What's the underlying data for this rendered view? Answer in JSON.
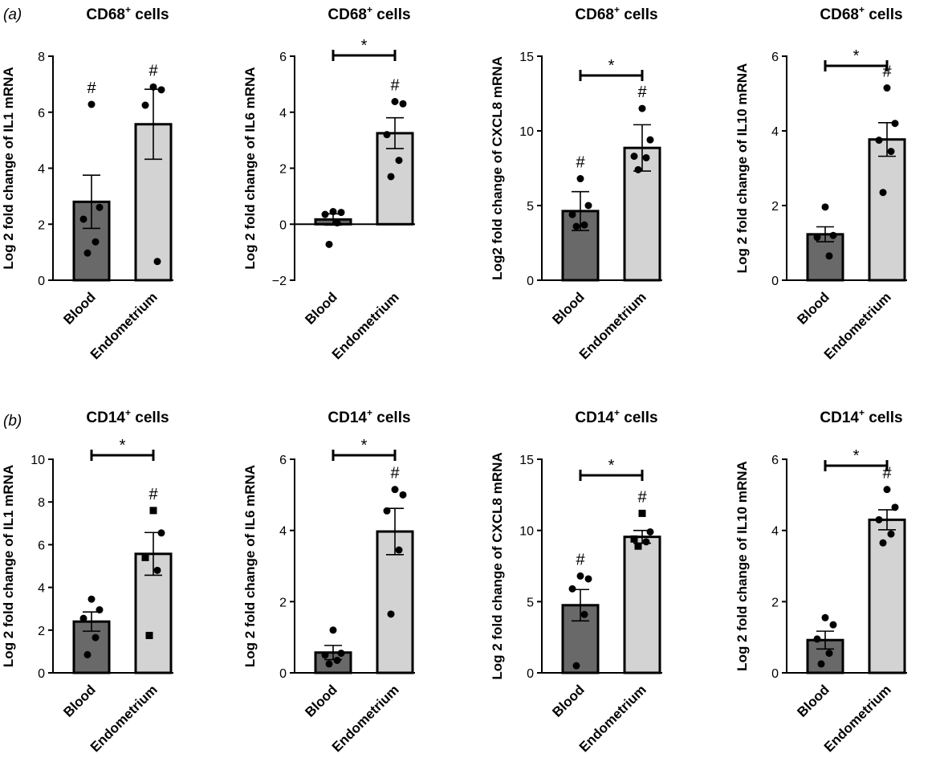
{
  "panel_labels": {
    "a": "(a)",
    "b": "(b)"
  },
  "chart_data": [
    {
      "type": "bar",
      "row": "a",
      "title_main": "CD68",
      "title_sup": "+",
      "title_rest": " cells",
      "ylabel": "Log 2 fold change of IL1 mRNA",
      "ylim": [
        0,
        8
      ],
      "yticks": [
        0,
        2,
        4,
        6,
        8
      ],
      "categories": [
        "Blood",
        "Endometrium"
      ],
      "colors": [
        "#696969",
        "#d3d3d3"
      ],
      "values": [
        2.8,
        5.57
      ],
      "errors": [
        0.95,
        1.25
      ],
      "points": [
        [
          6.28,
          2.6,
          2.18,
          1.37,
          0.97
        ],
        [
          6.9,
          6.8,
          6.25,
          0.67
        ]
      ],
      "point_markers": [
        "circle",
        "circle"
      ],
      "marks": [
        "#",
        "#"
      ],
      "significance": ""
    },
    {
      "type": "bar",
      "row": "a",
      "title_main": "CD68",
      "title_sup": "+",
      "title_rest": " cells",
      "ylabel": "Log 2 fold change of IL6 mRNA",
      "ylim": [
        -2,
        6
      ],
      "yticks": [
        -2,
        0,
        2,
        4,
        6
      ],
      "categories": [
        "Blood",
        "Endometrium"
      ],
      "colors": [
        "#696969",
        "#d3d3d3"
      ],
      "values": [
        0.17,
        3.25
      ],
      "errors": [
        0.2,
        0.55
      ],
      "points": [
        [
          0.45,
          0.42,
          0.35,
          0.05,
          -0.72
        ],
        [
          4.38,
          4.3,
          3.2,
          2.28,
          1.7
        ]
      ],
      "point_markers": [
        "circle",
        "circle"
      ],
      "marks": [
        "",
        "#"
      ],
      "significance": "*"
    },
    {
      "type": "bar",
      "row": "a",
      "title_main": "CD68",
      "title_sup": "+",
      "title_rest": " cells",
      "ylabel": "Log2 fold change of CXCL8 mRNA",
      "ylim": [
        0,
        15
      ],
      "yticks": [
        0,
        5,
        10,
        15
      ],
      "categories": [
        "Blood",
        "Endometrium"
      ],
      "colors": [
        "#696969",
        "#d3d3d3"
      ],
      "values": [
        4.63,
        8.86
      ],
      "errors": [
        1.3,
        1.55
      ],
      "points": [
        [
          6.8,
          5.0,
          4.4,
          3.7,
          3.6
        ],
        [
          11.5,
          9.4,
          8.3,
          8.2,
          7.4
        ]
      ],
      "point_markers": [
        "circle",
        "circle"
      ],
      "marks": [
        "#",
        "#"
      ],
      "significance": "*"
    },
    {
      "type": "bar",
      "row": "a",
      "title_main": "CD68",
      "title_sup": "+",
      "title_rest": " cells",
      "ylabel": "Log 2 fold change of IL10 mRNA",
      "ylim": [
        0,
        6
      ],
      "yticks": [
        0,
        2,
        4,
        6
      ],
      "categories": [
        "Blood",
        "Endometrium"
      ],
      "colors": [
        "#696969",
        "#d3d3d3"
      ],
      "values": [
        1.23,
        3.77
      ],
      "errors": [
        0.2,
        0.45
      ],
      "points": [
        [
          1.96,
          1.2,
          1.15,
          0.65
        ],
        [
          5.15,
          4.2,
          3.75,
          3.45,
          2.35
        ]
      ],
      "point_markers": [
        "circle",
        "circle"
      ],
      "marks": [
        "",
        "#"
      ],
      "significance": "*"
    },
    {
      "type": "bar",
      "row": "b",
      "title_main": "CD14",
      "title_sup": "+",
      "title_rest": " cells",
      "ylabel": "Log 2 fold change of IL1 mRNA",
      "ylim": [
        0,
        10
      ],
      "yticks": [
        0,
        2,
        4,
        6,
        8,
        10
      ],
      "categories": [
        "Blood",
        "Endometrium"
      ],
      "colors": [
        "#696969",
        "#d3d3d3"
      ],
      "values": [
        2.4,
        5.57
      ],
      "errors": [
        0.45,
        1.0
      ],
      "points": [
        [
          3.45,
          2.95,
          2.55,
          1.65,
          0.85
        ],
        [
          7.6,
          6.55,
          5.4,
          4.8,
          1.75
        ]
      ],
      "point_markers": [
        "circle",
        "square"
      ],
      "marks": [
        "",
        "#"
      ],
      "significance": "*"
    },
    {
      "type": "bar",
      "row": "b",
      "title_main": "CD14",
      "title_sup": "+",
      "title_rest": " cells",
      "ylabel": "Log 2 fold change of IL6 mRNA",
      "ylim": [
        0,
        6
      ],
      "yticks": [
        0,
        2,
        4,
        6
      ],
      "categories": [
        "Blood",
        "Endometrium"
      ],
      "colors": [
        "#696969",
        "#d3d3d3"
      ],
      "values": [
        0.57,
        3.97
      ],
      "errors": [
        0.2,
        0.65
      ],
      "points": [
        [
          1.2,
          0.55,
          0.5,
          0.35,
          0.25
        ],
        [
          5.15,
          5.0,
          4.55,
          3.45,
          1.65
        ]
      ],
      "point_markers": [
        "circle",
        "circle"
      ],
      "marks": [
        "",
        "#"
      ],
      "significance": "*"
    },
    {
      "type": "bar",
      "row": "b",
      "title_main": "CD14",
      "title_sup": "+",
      "title_rest": " cells",
      "ylabel": "Log 2 fold change of CXCL8 mRNA",
      "ylim": [
        0,
        15
      ],
      "yticks": [
        0,
        5,
        10,
        15
      ],
      "categories": [
        "Blood",
        "Endometrium"
      ],
      "colors": [
        "#696969",
        "#d3d3d3"
      ],
      "values": [
        4.75,
        9.55
      ],
      "errors": [
        1.1,
        0.45
      ],
      "points": [
        [
          6.8,
          6.6,
          5.9,
          4.1,
          0.5
        ],
        [
          11.2,
          9.9,
          9.4,
          9.2,
          8.9
        ]
      ],
      "point_markers": [
        "circle",
        "square"
      ],
      "marks": [
        "#",
        "#"
      ],
      "significance": "*"
    },
    {
      "type": "bar",
      "row": "b",
      "title_main": "CD14",
      "title_sup": "+",
      "title_rest": " cells",
      "ylabel": "Log 2 fold change of IL10 mRNA",
      "ylim": [
        0,
        6
      ],
      "yticks": [
        0,
        2,
        4,
        6
      ],
      "categories": [
        "Blood",
        "Endometrium"
      ],
      "colors": [
        "#696969",
        "#d3d3d3"
      ],
      "values": [
        0.92,
        4.3
      ],
      "errors": [
        0.25,
        0.28
      ],
      "points": [
        [
          1.55,
          1.35,
          0.95,
          0.55,
          0.25
        ],
        [
          5.15,
          4.65,
          4.3,
          3.9,
          3.65
        ]
      ],
      "point_markers": [
        "circle",
        "circle"
      ],
      "marks": [
        "",
        "#"
      ],
      "significance": "*"
    }
  ]
}
